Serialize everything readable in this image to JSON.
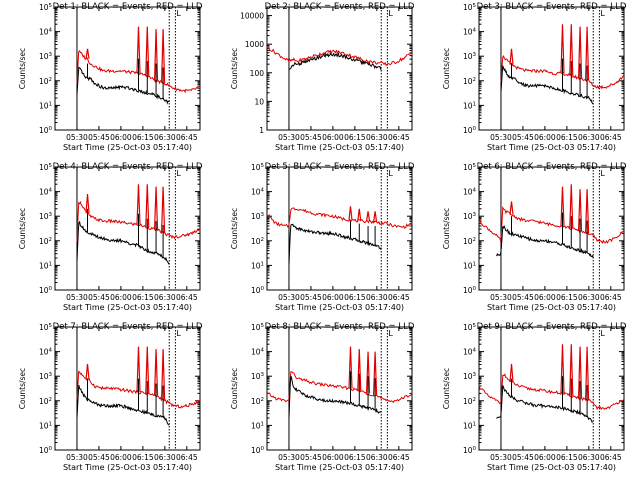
{
  "colors": {
    "events": "#000000",
    "lld": "#e00000",
    "axis": "#000000"
  },
  "chart_data": [
    {
      "type": "line",
      "title": "Det 1: BLACK = Events, RED = LLD",
      "ylabel": "Counts/sec",
      "xlabel": "Start Time (25-Oct-03 05:17:40)",
      "xlim": [
        5.25,
        6.9
      ],
      "xticks": [
        5.5,
        5.75,
        6.0,
        6.25,
        6.5,
        6.75
      ],
      "xtick_labels": [
        "05:30",
        "05:45",
        "06:00",
        "06:15",
        "06:30",
        "06:45"
      ],
      "ylim_exp": [
        0,
        5
      ],
      "ytick_exps": [
        0,
        1,
        2,
        3,
        4,
        5
      ],
      "ytick_style": "exp",
      "markers": [
        5.5,
        6.55,
        6.62
      ],
      "marker_label": "L",
      "lld_x": [
        5.5,
        5.52,
        5.55,
        5.6,
        5.62,
        5.65,
        5.7,
        5.75,
        5.8,
        5.9,
        6.0,
        6.1,
        6.2,
        6.3,
        6.4,
        6.5,
        6.55,
        6.6,
        6.7,
        6.8,
        6.9
      ],
      "lld_logy": [
        1.9,
        3.2,
        3.1,
        2.9,
        2.9,
        2.7,
        2.6,
        2.5,
        2.4,
        2.4,
        2.4,
        2.35,
        2.3,
        2.2,
        2.0,
        1.9,
        1.8,
        1.7,
        1.6,
        1.6,
        1.75
      ],
      "ev_x": [
        5.5,
        5.52,
        5.55,
        5.6,
        5.65,
        5.7,
        5.8,
        5.9,
        6.0,
        6.1,
        6.2,
        6.3,
        6.4,
        6.5,
        6.55
      ],
      "ev_logy": [
        1.4,
        2.5,
        2.4,
        2.1,
        2.1,
        1.9,
        1.7,
        1.7,
        1.75,
        1.7,
        1.6,
        1.5,
        1.4,
        1.2,
        1.1
      ],
      "spikes": [
        {
          "x": 5.62,
          "top": 3.3
        },
        {
          "x": 6.2,
          "top": 4.2
        },
        {
          "x": 6.3,
          "top": 4.2
        },
        {
          "x": 6.4,
          "top": 4.1
        },
        {
          "x": 6.48,
          "top": 4.1
        }
      ]
    },
    {
      "type": "line",
      "title": "Det 2: BLACK = Events, RED = LLD",
      "ylabel": "Counts/sec",
      "xlabel": "Start Time (25-Oct-03 05:17:40)",
      "xlim": [
        5.25,
        6.9
      ],
      "xticks": [
        5.5,
        5.75,
        6.0,
        6.25,
        6.5,
        6.75
      ],
      "xtick_labels": [
        "05:30",
        "05:45",
        "06:00",
        "06:15",
        "06:30",
        "06:45"
      ],
      "ylim_exp": [
        0,
        4.3
      ],
      "ytick_exps": [
        0,
        1,
        2,
        3,
        4
      ],
      "ytick_style": "plain",
      "ytick_labels": [
        "1",
        "10",
        "100",
        "1000",
        "10000"
      ],
      "markers": [
        5.5,
        6.55,
        6.62
      ],
      "marker_label": "L",
      "lld_x": [
        5.25,
        5.35,
        5.45,
        5.5,
        5.55,
        5.6,
        5.7,
        5.8,
        5.9,
        6.0,
        6.1,
        6.2,
        6.3,
        6.4,
        6.5,
        6.6,
        6.7,
        6.8,
        6.9
      ],
      "lld_logy": [
        2.9,
        2.7,
        2.5,
        2.4,
        2.45,
        2.4,
        2.5,
        2.6,
        2.7,
        2.75,
        2.7,
        2.6,
        2.5,
        2.4,
        2.35,
        2.3,
        2.35,
        2.5,
        2.7
      ],
      "ev_x": [
        5.5,
        5.55,
        5.6,
        5.7,
        5.8,
        5.9,
        6.0,
        6.1,
        6.2,
        6.3,
        6.4,
        6.5,
        6.55
      ],
      "ev_logy": [
        2.1,
        2.3,
        2.3,
        2.4,
        2.5,
        2.6,
        2.65,
        2.6,
        2.5,
        2.4,
        2.3,
        2.2,
        2.15
      ],
      "spikes": []
    },
    {
      "type": "line",
      "title": "Det 3: BLACK = Events, RED = LLD",
      "ylabel": "Counts/sec",
      "xlabel": "Start Time (25-Oct-03 05:17:40)",
      "xlim": [
        5.25,
        6.9
      ],
      "xticks": [
        5.5,
        5.75,
        6.0,
        6.25,
        6.5,
        6.75
      ],
      "xtick_labels": [
        "05:30",
        "05:45",
        "06:00",
        "06:15",
        "06:30",
        "06:45"
      ],
      "ylim_exp": [
        0,
        5
      ],
      "ytick_exps": [
        0,
        1,
        2,
        3,
        4,
        5
      ],
      "ytick_style": "exp",
      "markers": [
        5.5,
        6.55,
        6.62
      ],
      "marker_label": "L",
      "lld_x": [
        5.5,
        5.52,
        5.55,
        5.6,
        5.65,
        5.7,
        5.8,
        5.9,
        6.0,
        6.1,
        6.2,
        6.3,
        6.4,
        6.5,
        6.55,
        6.6,
        6.7,
        6.8,
        6.9
      ],
      "lld_logy": [
        2.0,
        3.0,
        2.9,
        2.7,
        2.6,
        2.5,
        2.4,
        2.4,
        2.4,
        2.3,
        2.3,
        2.2,
        2.1,
        2.0,
        1.8,
        1.75,
        1.75,
        1.9,
        2.2
      ],
      "ev_x": [
        5.5,
        5.52,
        5.55,
        5.6,
        5.65,
        5.7,
        5.8,
        5.9,
        6.0,
        6.1,
        6.2,
        6.3,
        6.4,
        6.5,
        6.55
      ],
      "ev_logy": [
        1.5,
        2.6,
        2.4,
        2.1,
        2.1,
        1.9,
        1.8,
        1.8,
        1.8,
        1.7,
        1.6,
        1.5,
        1.4,
        1.3,
        1.1
      ],
      "spikes": [
        {
          "x": 5.62,
          "top": 3.3
        },
        {
          "x": 6.2,
          "top": 4.3
        },
        {
          "x": 6.3,
          "top": 4.3
        },
        {
          "x": 6.4,
          "top": 4.2
        },
        {
          "x": 6.48,
          "top": 4.2
        }
      ]
    },
    {
      "type": "line",
      "title": "Det 4: BLACK = Events, RED = LLD",
      "ylabel": "Counts/sec",
      "xlabel": "Start Time (25-Oct-03 05:17:40)",
      "xlim": [
        5.25,
        6.9
      ],
      "xticks": [
        5.5,
        5.75,
        6.0,
        6.25,
        6.5,
        6.75
      ],
      "xtick_labels": [
        "05:30",
        "05:45",
        "06:00",
        "06:15",
        "06:30",
        "06:45"
      ],
      "ylim_exp": [
        0,
        5
      ],
      "ytick_exps": [
        0,
        1,
        2,
        3,
        4,
        5
      ],
      "ytick_style": "exp",
      "markers": [
        5.5,
        6.55,
        6.62
      ],
      "marker_label": "L",
      "lld_x": [
        5.5,
        5.52,
        5.55,
        5.6,
        5.65,
        5.7,
        5.8,
        5.9,
        6.0,
        6.1,
        6.2,
        6.3,
        6.4,
        6.5,
        6.55,
        6.6,
        6.7,
        6.8,
        6.9
      ],
      "lld_logy": [
        1.9,
        3.6,
        3.5,
        3.2,
        3.0,
        2.9,
        2.8,
        2.8,
        2.75,
        2.7,
        2.65,
        2.55,
        2.45,
        2.3,
        2.2,
        2.15,
        2.2,
        2.3,
        2.5
      ],
      "ev_x": [
        5.5,
        5.52,
        5.55,
        5.6,
        5.65,
        5.7,
        5.8,
        5.9,
        6.0,
        6.1,
        6.2,
        6.3,
        6.4,
        6.5,
        6.55
      ],
      "ev_logy": [
        1.2,
        2.8,
        2.6,
        2.4,
        2.3,
        2.2,
        2.1,
        2.0,
        2.0,
        1.9,
        1.8,
        1.6,
        1.5,
        1.3,
        1.1
      ],
      "spikes": [
        {
          "x": 5.62,
          "top": 3.9
        },
        {
          "x": 6.2,
          "top": 4.3
        },
        {
          "x": 6.3,
          "top": 4.3
        },
        {
          "x": 6.4,
          "top": 4.2
        },
        {
          "x": 6.48,
          "top": 4.2
        }
      ]
    },
    {
      "type": "line",
      "title": "Det 5: BLACK = Events, RED = LLD",
      "ylabel": "Counts/sec",
      "xlabel": "Start Time (25-Oct-03 05:17:40)",
      "xlim": [
        5.25,
        6.9
      ],
      "xticks": [
        5.5,
        5.75,
        6.0,
        6.25,
        6.5,
        6.75
      ],
      "xtick_labels": [
        "05:30",
        "05:45",
        "06:00",
        "06:15",
        "06:30",
        "06:45"
      ],
      "ylim_exp": [
        0,
        5
      ],
      "ytick_exps": [
        0,
        1,
        2,
        3,
        4,
        5
      ],
      "ytick_style": "exp",
      "markers": [
        5.5,
        6.55,
        6.62
      ],
      "marker_label": "L",
      "lld_x": [
        5.25,
        5.35,
        5.45,
        5.5,
        5.52,
        5.55,
        5.6,
        5.7,
        5.8,
        5.9,
        6.0,
        6.1,
        6.2,
        6.3,
        6.4,
        6.5,
        6.6,
        6.7,
        6.8,
        6.9
      ],
      "lld_logy": [
        3.1,
        2.7,
        2.6,
        2.6,
        3.3,
        3.3,
        3.3,
        3.2,
        3.1,
        3.05,
        3.0,
        2.9,
        2.85,
        2.8,
        2.8,
        2.75,
        2.7,
        2.6,
        2.55,
        2.7
      ],
      "ev_x": [
        5.5,
        5.52,
        5.55,
        5.6,
        5.7,
        5.8,
        5.9,
        6.0,
        6.1,
        6.2,
        6.3,
        6.4,
        6.5,
        6.55
      ],
      "ev_logy": [
        1.0,
        2.7,
        2.6,
        2.5,
        2.4,
        2.35,
        2.3,
        2.3,
        2.2,
        2.1,
        2.0,
        1.9,
        1.8,
        1.7
      ],
      "spikes": [
        {
          "x": 6.2,
          "top": 3.4
        },
        {
          "x": 6.3,
          "top": 3.3
        },
        {
          "x": 6.4,
          "top": 3.2
        },
        {
          "x": 6.48,
          "top": 3.2
        }
      ]
    },
    {
      "type": "line",
      "title": "Det 6: BLACK = Events, RED = LLD",
      "ylabel": "Counts/sec",
      "xlabel": "Start Time (25-Oct-03 05:17:40)",
      "xlim": [
        5.25,
        6.9
      ],
      "xticks": [
        5.5,
        5.75,
        6.0,
        6.25,
        6.5,
        6.75
      ],
      "xtick_labels": [
        "05:30",
        "05:45",
        "06:00",
        "06:15",
        "06:30",
        "06:45"
      ],
      "ylim_exp": [
        0,
        5
      ],
      "ytick_exps": [
        0,
        1,
        2,
        3,
        4,
        5
      ],
      "ytick_style": "exp",
      "markers": [
        5.5,
        6.55,
        6.62
      ],
      "marker_label": "L",
      "lld_x": [
        5.25,
        5.35,
        5.45,
        5.5,
        5.52,
        5.55,
        5.6,
        5.7,
        5.8,
        5.9,
        6.0,
        6.1,
        6.2,
        6.3,
        6.4,
        6.5,
        6.55,
        6.6,
        6.7,
        6.8,
        6.9
      ],
      "lld_logy": [
        2.8,
        2.5,
        2.2,
        2.0,
        3.3,
        3.2,
        3.1,
        2.9,
        2.8,
        2.8,
        2.7,
        2.65,
        2.6,
        2.5,
        2.4,
        2.3,
        2.2,
        2.0,
        1.95,
        2.1,
        2.4
      ],
      "ev_x": [
        5.45,
        5.5,
        5.52,
        5.55,
        5.6,
        5.7,
        5.8,
        5.9,
        6.0,
        6.1,
        6.2,
        6.3,
        6.4,
        6.5,
        6.55
      ],
      "ev_logy": [
        1.4,
        1.5,
        2.6,
        2.5,
        2.3,
        2.2,
        2.1,
        2.0,
        2.0,
        1.95,
        1.85,
        1.7,
        1.6,
        1.5,
        1.3
      ],
      "spikes": [
        {
          "x": 5.62,
          "top": 3.6
        },
        {
          "x": 6.2,
          "top": 4.2
        },
        {
          "x": 6.3,
          "top": 4.3
        },
        {
          "x": 6.4,
          "top": 4.1
        },
        {
          "x": 6.48,
          "top": 4.1
        }
      ]
    },
    {
      "type": "line",
      "title": "Det 7: BLACK = Events, RED = LLD",
      "ylabel": "Counts/sec",
      "xlabel": "Start Time (25-Oct-03 05:17:40)",
      "xlim": [
        5.25,
        6.9
      ],
      "xticks": [
        5.5,
        5.75,
        6.0,
        6.25,
        6.5,
        6.75
      ],
      "xtick_labels": [
        "05:30",
        "05:45",
        "06:00",
        "06:15",
        "06:30",
        "06:45"
      ],
      "ylim_exp": [
        0,
        5
      ],
      "ytick_exps": [
        0,
        1,
        2,
        3,
        4,
        5
      ],
      "ytick_style": "exp",
      "markers": [
        5.5,
        6.55,
        6.62
      ],
      "marker_label": "L",
      "lld_x": [
        5.5,
        5.52,
        5.55,
        5.6,
        5.65,
        5.7,
        5.8,
        5.9,
        6.0,
        6.1,
        6.2,
        6.3,
        6.4,
        6.5,
        6.55,
        6.6,
        6.7,
        6.8,
        6.9
      ],
      "lld_logy": [
        2.0,
        3.2,
        3.1,
        2.9,
        2.8,
        2.6,
        2.5,
        2.5,
        2.45,
        2.4,
        2.35,
        2.3,
        2.2,
        2.0,
        1.9,
        1.8,
        1.75,
        1.85,
        2.0
      ],
      "ev_x": [
        5.5,
        5.52,
        5.55,
        5.6,
        5.65,
        5.7,
        5.8,
        5.9,
        6.0,
        6.1,
        6.2,
        6.3,
        6.4,
        6.5,
        6.55
      ],
      "ev_logy": [
        1.3,
        2.6,
        2.4,
        2.1,
        2.0,
        1.9,
        1.8,
        1.8,
        1.8,
        1.7,
        1.6,
        1.5,
        1.4,
        1.3,
        1.0
      ],
      "spikes": [
        {
          "x": 5.62,
          "top": 3.5
        },
        {
          "x": 6.2,
          "top": 4.2
        },
        {
          "x": 6.3,
          "top": 4.2
        },
        {
          "x": 6.4,
          "top": 4.1
        },
        {
          "x": 6.48,
          "top": 4.1
        }
      ]
    },
    {
      "type": "line",
      "title": "Det 8: BLACK = Events, RED = LLD",
      "ylabel": "Counts/sec",
      "xlabel": "Start Time (25-Oct-03 05:17:40)",
      "xlim": [
        5.25,
        6.9
      ],
      "xticks": [
        5.5,
        5.75,
        6.0,
        6.25,
        6.5,
        6.75
      ],
      "xtick_labels": [
        "05:30",
        "05:45",
        "06:00",
        "06:15",
        "06:30",
        "06:45"
      ],
      "ylim_exp": [
        0,
        5
      ],
      "ytick_exps": [
        0,
        1,
        2,
        3,
        4,
        5
      ],
      "ytick_style": "exp",
      "markers": [
        5.5,
        6.55,
        6.62
      ],
      "marker_label": "L",
      "lld_x": [
        5.25,
        5.35,
        5.45,
        5.5,
        5.52,
        5.55,
        5.6,
        5.7,
        5.8,
        5.9,
        6.0,
        6.1,
        6.2,
        6.3,
        6.4,
        6.5,
        6.55,
        6.6,
        6.7,
        6.8,
        6.9
      ],
      "lld_logy": [
        2.3,
        2.1,
        2.0,
        2.0,
        3.2,
        3.1,
        2.9,
        2.8,
        2.7,
        2.65,
        2.6,
        2.55,
        2.5,
        2.4,
        2.3,
        2.2,
        2.1,
        2.0,
        2.0,
        2.1,
        2.3
      ],
      "ev_x": [
        5.5,
        5.52,
        5.55,
        5.6,
        5.7,
        5.8,
        5.9,
        6.0,
        6.1,
        6.2,
        6.3,
        6.4,
        6.5,
        6.55
      ],
      "ev_logy": [
        1.3,
        3.1,
        2.6,
        2.4,
        2.2,
        2.1,
        2.0,
        2.0,
        1.95,
        1.9,
        1.8,
        1.7,
        1.6,
        1.5
      ],
      "spikes": [
        {
          "x": 6.2,
          "top": 4.2
        },
        {
          "x": 6.3,
          "top": 4.1
        },
        {
          "x": 6.4,
          "top": 4.0
        },
        {
          "x": 6.48,
          "top": 4.0
        }
      ]
    },
    {
      "type": "line",
      "title": "Det 9: BLACK = Events, RED = LLD",
      "ylabel": "Counts/sec",
      "xlabel": "Start Time (25-Oct-03 05:17:40)",
      "xlim": [
        5.25,
        6.9
      ],
      "xticks": [
        5.5,
        5.75,
        6.0,
        6.25,
        6.5,
        6.75
      ],
      "xtick_labels": [
        "05:30",
        "05:45",
        "06:00",
        "06:15",
        "06:30",
        "06:45"
      ],
      "ylim_exp": [
        0,
        5
      ],
      "ytick_exps": [
        0,
        1,
        2,
        3,
        4,
        5
      ],
      "ytick_style": "exp",
      "markers": [
        5.5,
        6.55,
        6.62
      ],
      "marker_label": "L",
      "lld_x": [
        5.25,
        5.35,
        5.45,
        5.5,
        5.52,
        5.55,
        5.6,
        5.7,
        5.8,
        5.9,
        6.0,
        6.1,
        6.2,
        6.3,
        6.4,
        6.5,
        6.55,
        6.6,
        6.7,
        6.8,
        6.9
      ],
      "lld_logy": [
        2.6,
        2.2,
        2.0,
        1.9,
        3.1,
        3.0,
        2.8,
        2.6,
        2.5,
        2.45,
        2.4,
        2.35,
        2.3,
        2.2,
        2.1,
        2.0,
        1.9,
        1.7,
        1.7,
        1.85,
        2.1
      ],
      "ev_x": [
        5.45,
        5.5,
        5.52,
        5.55,
        5.6,
        5.7,
        5.8,
        5.9,
        6.0,
        6.1,
        6.2,
        6.3,
        6.4,
        6.5,
        6.55
      ],
      "ev_logy": [
        1.3,
        1.4,
        2.6,
        2.4,
        2.2,
        2.0,
        1.9,
        1.8,
        1.8,
        1.75,
        1.7,
        1.6,
        1.5,
        1.3,
        1.1
      ],
      "spikes": [
        {
          "x": 5.62,
          "top": 3.5
        },
        {
          "x": 6.2,
          "top": 4.3
        },
        {
          "x": 6.3,
          "top": 4.3
        },
        {
          "x": 6.4,
          "top": 4.2
        },
        {
          "x": 6.48,
          "top": 4.2
        }
      ]
    }
  ]
}
